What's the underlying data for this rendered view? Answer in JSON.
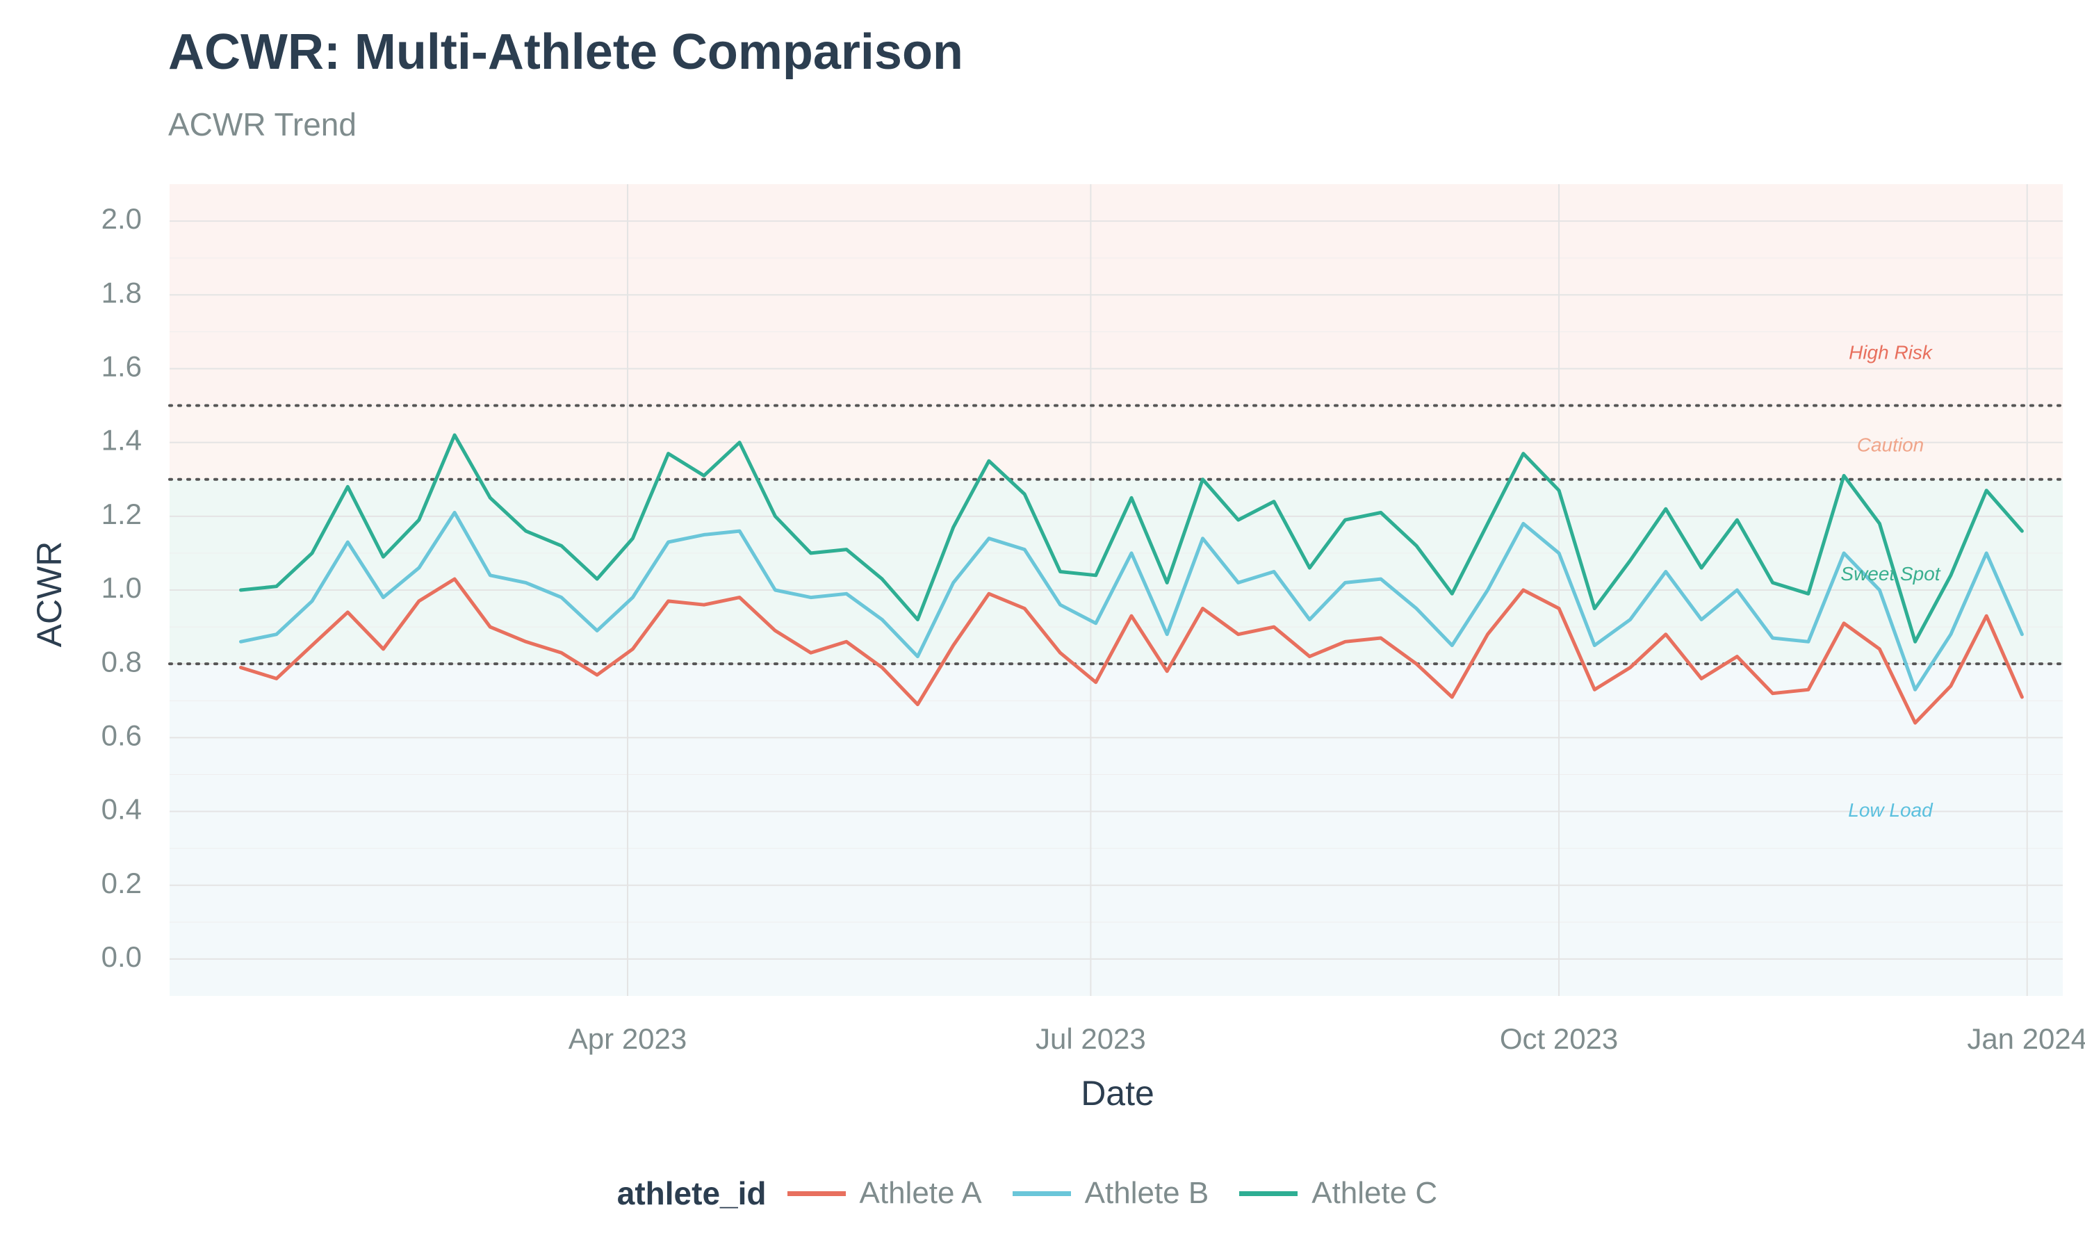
{
  "chart_data": {
    "type": "line",
    "title": "ACWR: Multi-Athlete Comparison",
    "subtitle": "ACWR Trend",
    "xlabel": "Date",
    "ylabel": "ACWR",
    "xlim": [
      "2023-01-01",
      "2024-01-08"
    ],
    "ylim": [
      -0.1,
      2.1
    ],
    "x_ticks": [
      {
        "date": "2023-04-01",
        "label": "Apr 2023"
      },
      {
        "date": "2023-07-01",
        "label": "Jul 2023"
      },
      {
        "date": "2023-10-01",
        "label": "Oct 2023"
      },
      {
        "date": "2024-01-01",
        "label": "Jan 2024"
      }
    ],
    "y_ticks": [
      "0.0",
      "0.2",
      "0.4",
      "0.6",
      "0.8",
      "1.0",
      "1.2",
      "1.4",
      "1.6",
      "1.8",
      "2.0"
    ],
    "grid": true,
    "legend": {
      "title": "athlete_id",
      "position": "bottom"
    },
    "zones": [
      {
        "label": "Low Load",
        "from": -0.1,
        "to": 0.8,
        "fill": "#f3f9fb",
        "label_color": "#5bc0de",
        "label_y": 0.4
      },
      {
        "label": "Sweet Spot",
        "from": 0.8,
        "to": 1.3,
        "fill": "#eef8f5",
        "label_color": "#3aaf8f",
        "label_y": 1.04
      },
      {
        "label": "Caution",
        "from": 1.3,
        "to": 1.5,
        "fill": "#fdf5f2",
        "label_color": "#f0a58a",
        "label_y": 1.39
      },
      {
        "label": "High Risk",
        "from": 1.5,
        "to": 2.1,
        "fill": "#fdf3f1",
        "label_color": "#e8705e",
        "label_y": 1.64
      }
    ],
    "thresholds": [
      0.8,
      1.3,
      1.5
    ],
    "x": [
      "2023-01-15",
      "2023-01-22",
      "2023-01-29",
      "2023-02-05",
      "2023-02-12",
      "2023-02-19",
      "2023-02-26",
      "2023-03-05",
      "2023-03-12",
      "2023-03-19",
      "2023-03-26",
      "2023-04-02",
      "2023-04-09",
      "2023-04-16",
      "2023-04-23",
      "2023-04-30",
      "2023-05-07",
      "2023-05-14",
      "2023-05-21",
      "2023-05-28",
      "2023-06-04",
      "2023-06-11",
      "2023-06-18",
      "2023-06-25",
      "2023-07-02",
      "2023-07-09",
      "2023-07-16",
      "2023-07-23",
      "2023-07-30",
      "2023-08-06",
      "2023-08-13",
      "2023-08-20",
      "2023-08-27",
      "2023-09-03",
      "2023-09-10",
      "2023-09-17",
      "2023-09-24",
      "2023-10-01",
      "2023-10-08",
      "2023-10-15",
      "2023-10-22",
      "2023-10-29",
      "2023-11-05",
      "2023-11-12",
      "2023-11-19",
      "2023-11-26",
      "2023-12-03",
      "2023-12-10",
      "2023-12-17",
      "2023-12-24",
      "2023-12-31"
    ],
    "series": [
      {
        "name": "Athlete A",
        "color": "#e8705e",
        "values": [
          0.79,
          0.76,
          0.85,
          0.94,
          0.84,
          0.97,
          1.03,
          0.9,
          0.86,
          0.83,
          0.77,
          0.84,
          0.97,
          0.96,
          0.98,
          0.89,
          0.83,
          0.86,
          0.79,
          0.69,
          0.85,
          0.99,
          0.95,
          0.83,
          0.75,
          0.93,
          0.78,
          0.95,
          0.88,
          0.9,
          0.82,
          0.86,
          0.87,
          0.8,
          0.71,
          0.88,
          1.0,
          0.95,
          0.73,
          0.79,
          0.88,
          0.76,
          0.82,
          0.72,
          0.73,
          0.91,
          0.84,
          0.64,
          0.74,
          0.93,
          0.71
        ]
      },
      {
        "name": "Athlete B",
        "color": "#6ac6d9",
        "values": [
          0.86,
          0.88,
          0.97,
          1.13,
          0.98,
          1.06,
          1.21,
          1.04,
          1.02,
          0.98,
          0.89,
          0.98,
          1.13,
          1.15,
          1.16,
          1.0,
          0.98,
          0.99,
          0.92,
          0.82,
          1.02,
          1.14,
          1.11,
          0.96,
          0.91,
          1.1,
          0.88,
          1.14,
          1.02,
          1.05,
          0.92,
          1.02,
          1.03,
          0.95,
          0.85,
          1.0,
          1.18,
          1.1,
          0.85,
          0.92,
          1.05,
          0.92,
          1.0,
          0.87,
          0.86,
          1.1,
          1.0,
          0.73,
          0.88,
          1.1,
          0.88
        ]
      },
      {
        "name": "Athlete C",
        "color": "#2eae93",
        "values": [
          1.0,
          1.01,
          1.1,
          1.28,
          1.09,
          1.19,
          1.42,
          1.25,
          1.16,
          1.12,
          1.03,
          1.14,
          1.37,
          1.31,
          1.4,
          1.2,
          1.1,
          1.11,
          1.03,
          0.92,
          1.17,
          1.35,
          1.26,
          1.05,
          1.04,
          1.25,
          1.02,
          1.3,
          1.19,
          1.24,
          1.06,
          1.19,
          1.21,
          1.12,
          0.99,
          1.18,
          1.37,
          1.27,
          0.95,
          1.08,
          1.22,
          1.06,
          1.19,
          1.02,
          0.99,
          1.31,
          1.18,
          0.86,
          1.04,
          1.27,
          1.16
        ]
      }
    ]
  }
}
